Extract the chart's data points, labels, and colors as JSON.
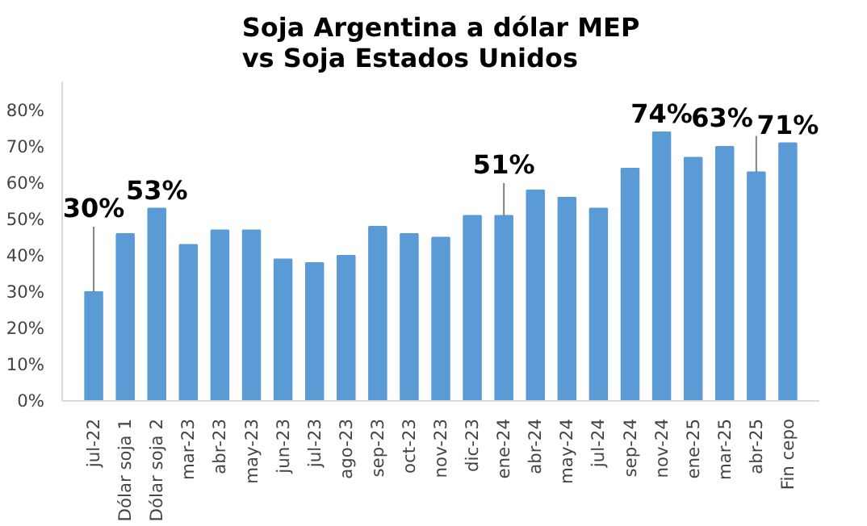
{
  "chart_data": {
    "type": "bar",
    "title": "Soja Argentina a dólar MEP\nvs Soja Estados Unidos",
    "categories": [
      "jul-22",
      "Dólar soja 1",
      "Dólar soja 2",
      "mar-23",
      "abr-23",
      "may-23",
      "jun-23",
      "jul-23",
      "ago-23",
      "sep-23",
      "oct-23",
      "nov-23",
      "dic-23",
      "ene-24",
      "abr-24",
      "may-24",
      "jul-24",
      "sep-24",
      "nov-24",
      "ene-25",
      "mar-25",
      "abr-25",
      "Fin cepo"
    ],
    "values": [
      30,
      46,
      53,
      43,
      47,
      47,
      39,
      38,
      40,
      48,
      46,
      45,
      51,
      51,
      58,
      56,
      53,
      64,
      74,
      67,
      70,
      63,
      71
    ],
    "value_labels": [
      "30%",
      null,
      "53%",
      null,
      null,
      null,
      null,
      null,
      null,
      null,
      null,
      null,
      null,
      "51%",
      null,
      null,
      null,
      null,
      "74%",
      null,
      null,
      "63%",
      "71%"
    ],
    "color": "#5b9bd5",
    "ylim": [
      0,
      88
    ],
    "yticks": [
      {
        "value": 0,
        "label": "0%"
      },
      {
        "value": 10,
        "label": "10%"
      },
      {
        "value": 20,
        "label": "20%"
      },
      {
        "value": 30,
        "label": "30%"
      },
      {
        "value": 40,
        "label": "40%"
      },
      {
        "value": 50,
        "label": "50%"
      },
      {
        "value": 60,
        "label": "60%"
      },
      {
        "value": 70,
        "label": "70%"
      },
      {
        "value": 80,
        "label": "80%"
      }
    ],
    "grid": false
  }
}
